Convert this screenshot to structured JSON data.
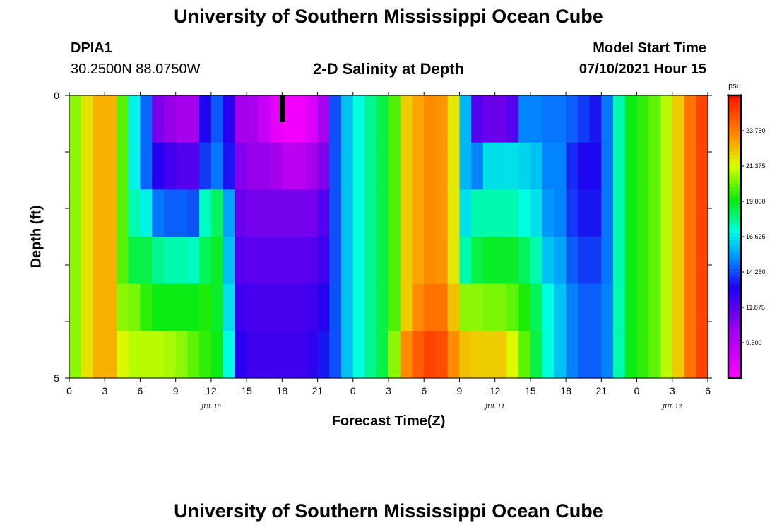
{
  "header": {
    "title": "University of Southern Mississippi Ocean Cube",
    "station_id": "DPIA1",
    "station_coords": "30.2500N  88.0750W",
    "plot_title": "2-D Salinity at Depth",
    "model_start_label": "Model Start Time",
    "model_start_value": "07/10/2021 Hour 15"
  },
  "footer": {
    "title": "University of Southern Mississippi Ocean Cube"
  },
  "colorbar": {
    "unit": "psu",
    "tick_labels": [
      "23.750",
      "21.375",
      "19.000",
      "16.625",
      "14.250",
      "11.875",
      "9.500"
    ],
    "tick_values": [
      23.75,
      21.375,
      19.0,
      16.625,
      14.25,
      11.875,
      9.5
    ],
    "range": [
      7.125,
      26.125
    ]
  },
  "chart_data": {
    "type": "heatmap",
    "title": "2-D Salinity at Depth",
    "xlabel": "Forecast Time(Z)",
    "ylabel": "Depth (ft)",
    "x_tick_labels": [
      "0",
      "3",
      "6",
      "9",
      "12",
      "15",
      "18",
      "21",
      "0",
      "3",
      "6",
      "9",
      "12",
      "15",
      "18",
      "21",
      "0",
      "3",
      "6"
    ],
    "x_date_labels": [
      {
        "text": "JUL 10",
        "hour": 12
      },
      {
        "text": "JUL 11",
        "hour": 36
      },
      {
        "text": "JUL 12",
        "hour": 51
      }
    ],
    "y_tick_labels": [
      "0",
      "5"
    ],
    "ylim": [
      0,
      5
    ],
    "xlim_hours": [
      0,
      54
    ],
    "units": "psu",
    "depth_layers_ft": [
      0,
      1,
      2,
      3,
      4
    ],
    "hours": [
      0,
      1,
      2,
      3,
      4,
      5,
      6,
      7,
      8,
      9,
      10,
      11,
      12,
      13,
      14,
      15,
      16,
      17,
      18,
      19,
      20,
      21,
      22,
      23,
      24,
      25,
      26,
      27,
      28,
      29,
      30,
      31,
      32,
      33,
      34,
      35,
      36,
      37,
      38,
      39,
      40,
      41,
      42,
      43,
      44,
      45,
      46,
      47,
      48,
      49,
      50,
      51,
      52,
      53,
      54
    ],
    "salinity": [
      [
        20.5,
        21.9,
        22.8,
        22.8,
        19.9,
        16.8,
        14.6,
        11.1,
        10.5,
        10.0,
        10.0,
        13.3,
        14.4,
        13.0,
        10.0,
        10.0,
        9.0,
        8.0,
        7.5,
        7.5,
        8.3,
        10.0,
        14.3,
        16.0,
        17.0,
        17.8,
        18.5,
        19.8,
        22.3,
        23.0,
        23.5,
        23.3,
        21.8,
        15.8,
        12.0,
        11.5,
        11.5,
        12.0,
        15.0,
        15.0,
        14.8,
        14.8,
        14.5,
        14.0,
        13.5,
        14.8,
        17.5,
        19.0,
        19.5,
        20.0,
        21.0,
        22.3,
        24.0,
        25.0,
        25.5
      ],
      [
        20.5,
        21.9,
        22.8,
        22.8,
        19.9,
        16.8,
        14.6,
        13.0,
        12.5,
        12.0,
        12.0,
        14.0,
        14.8,
        13.5,
        11.0,
        10.5,
        10.5,
        10.0,
        9.3,
        9.3,
        10.0,
        11.0,
        14.3,
        16.0,
        17.0,
        17.8,
        18.5,
        19.8,
        22.3,
        23.0,
        23.5,
        23.3,
        21.8,
        15.8,
        15.0,
        16.5,
        16.5,
        16.5,
        16.3,
        16.0,
        15.0,
        15.0,
        13.8,
        13.3,
        13.3,
        14.8,
        17.5,
        19.0,
        19.5,
        20.0,
        21.0,
        22.3,
        24.0,
        25.0,
        25.5
      ],
      [
        20.5,
        21.9,
        22.8,
        22.8,
        19.9,
        17.5,
        16.8,
        14.8,
        14.5,
        14.5,
        14.3,
        17.3,
        18.3,
        15.5,
        11.5,
        11.3,
        11.3,
        11.3,
        11.3,
        11.3,
        11.3,
        12.0,
        14.3,
        16.0,
        17.0,
        17.8,
        18.5,
        19.8,
        22.3,
        23.0,
        23.5,
        23.3,
        21.8,
        16.5,
        17.5,
        17.5,
        17.5,
        17.5,
        17.0,
        16.5,
        15.3,
        15.0,
        14.0,
        13.5,
        13.5,
        14.8,
        17.5,
        19.0,
        19.5,
        20.0,
        21.0,
        22.3,
        24.0,
        25.0,
        25.5
      ],
      [
        20.5,
        21.9,
        22.8,
        22.8,
        19.9,
        18.5,
        18.5,
        17.8,
        17.5,
        17.5,
        17.3,
        18.3,
        18.8,
        16.0,
        12.0,
        11.8,
        11.8,
        11.8,
        11.8,
        11.8,
        12.0,
        12.5,
        14.3,
        16.0,
        17.0,
        17.8,
        18.5,
        19.8,
        22.3,
        23.0,
        23.5,
        23.3,
        21.8,
        17.5,
        18.5,
        18.8,
        18.8,
        18.8,
        18.3,
        17.5,
        16.0,
        15.5,
        14.5,
        14.0,
        14.0,
        14.8,
        17.5,
        19.0,
        19.5,
        20.0,
        21.0,
        22.3,
        24.0,
        25.0,
        25.5
      ],
      [
        20.5,
        21.9,
        22.8,
        22.8,
        20.5,
        20.3,
        19.5,
        19.0,
        19.0,
        19.0,
        19.0,
        19.3,
        18.8,
        16.5,
        12.5,
        12.3,
        12.3,
        12.3,
        12.3,
        12.3,
        12.5,
        13.0,
        14.3,
        16.0,
        17.0,
        17.8,
        18.5,
        19.8,
        22.3,
        23.5,
        24.0,
        24.0,
        22.5,
        20.5,
        20.5,
        20.3,
        20.3,
        20.0,
        19.3,
        18.3,
        17.0,
        16.0,
        15.0,
        14.5,
        14.5,
        15.0,
        17.5,
        19.0,
        19.5,
        20.0,
        21.0,
        22.3,
        24.0,
        25.0,
        25.5
      ]
    ],
    "bottom_row_salinity": [
      20.5,
      21.9,
      22.8,
      22.8,
      21.5,
      21.0,
      21.0,
      21.0,
      20.8,
      20.5,
      20.0,
      19.5,
      19.0,
      17.0,
      13.0,
      12.5,
      12.5,
      12.5,
      12.5,
      12.5,
      12.8,
      13.5,
      14.3,
      16.0,
      17.0,
      17.8,
      18.5,
      20.5,
      23.5,
      24.5,
      25.0,
      24.8,
      23.5,
      22.5,
      22.3,
      22.3,
      22.3,
      21.5,
      20.0,
      18.5,
      17.0,
      16.0,
      15.0,
      14.5,
      14.5,
      15.0,
      17.5,
      19.0,
      19.5,
      20.0,
      21.0,
      22.3,
      24.0,
      25.0,
      25.5
    ]
  }
}
